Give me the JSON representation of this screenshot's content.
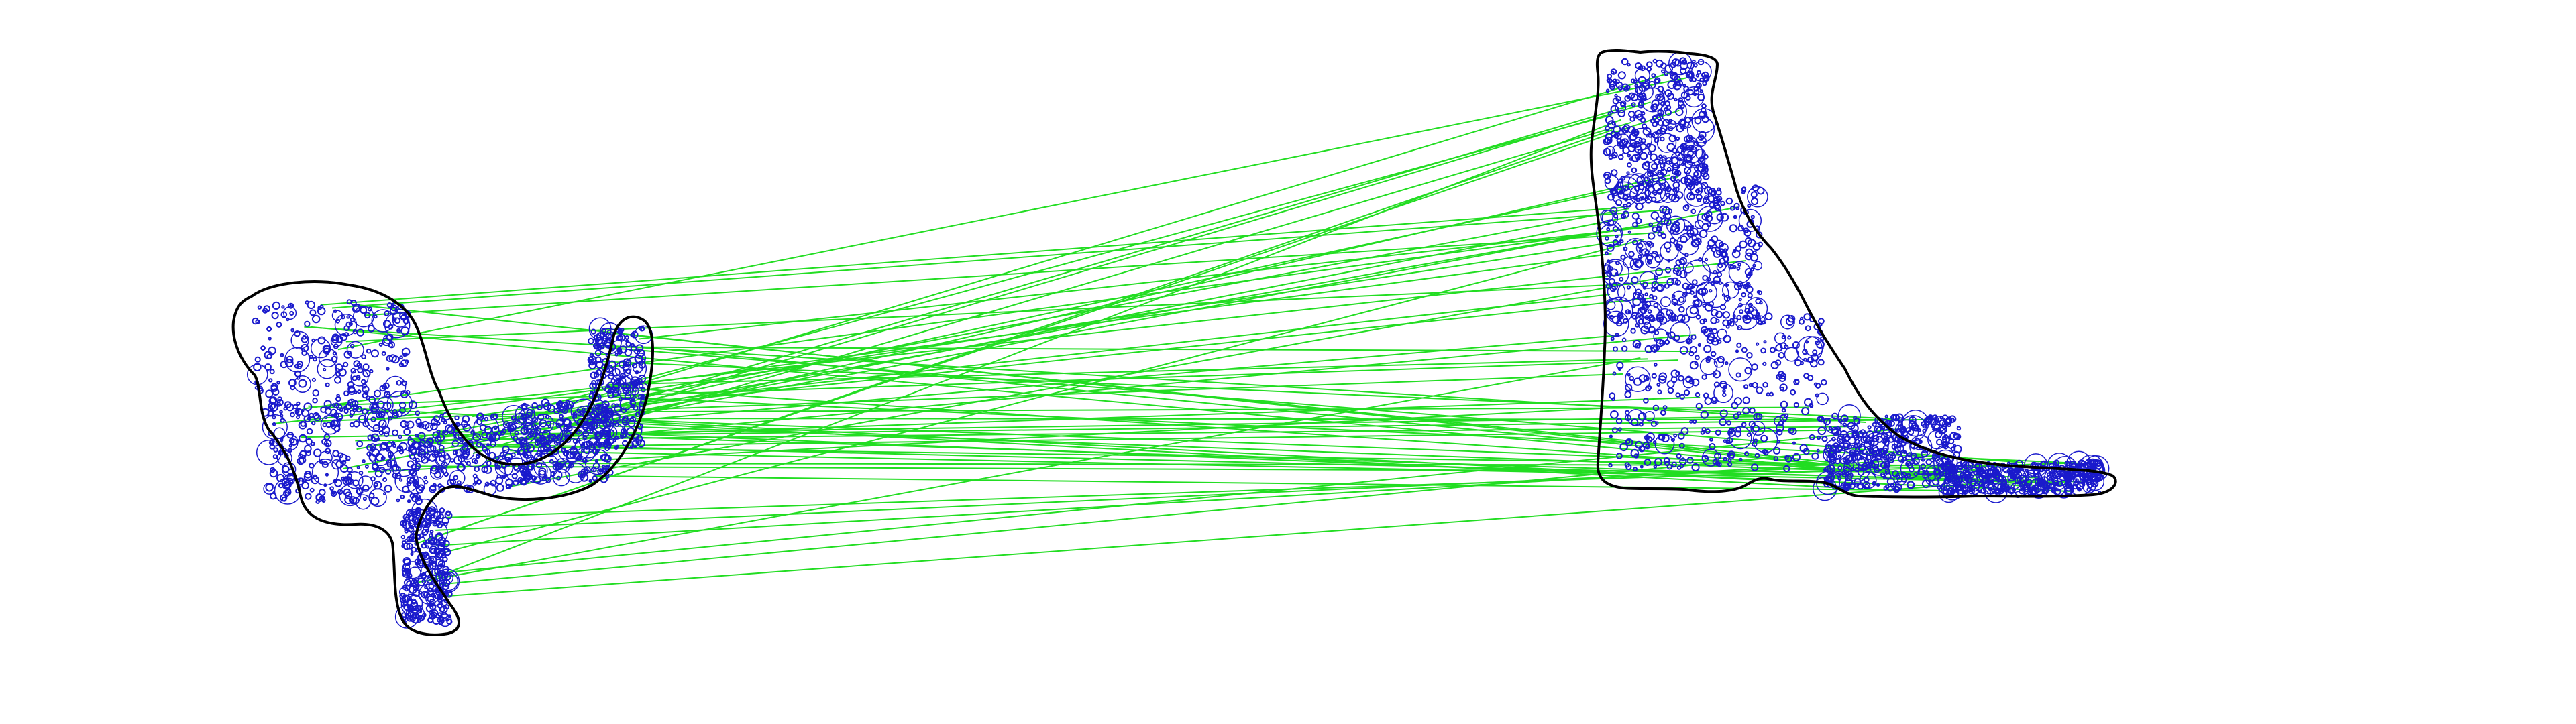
{
  "figure": {
    "kind": "feature-match-visualization",
    "background_color": "#ffffff",
    "outline_color": "#000000",
    "keypoint_color": "#1a1acc",
    "match_line_color": "#22dd22",
    "left_shape": {
      "name": "left-silhouette"
    },
    "right_shape": {
      "name": "right-silhouette"
    }
  }
}
